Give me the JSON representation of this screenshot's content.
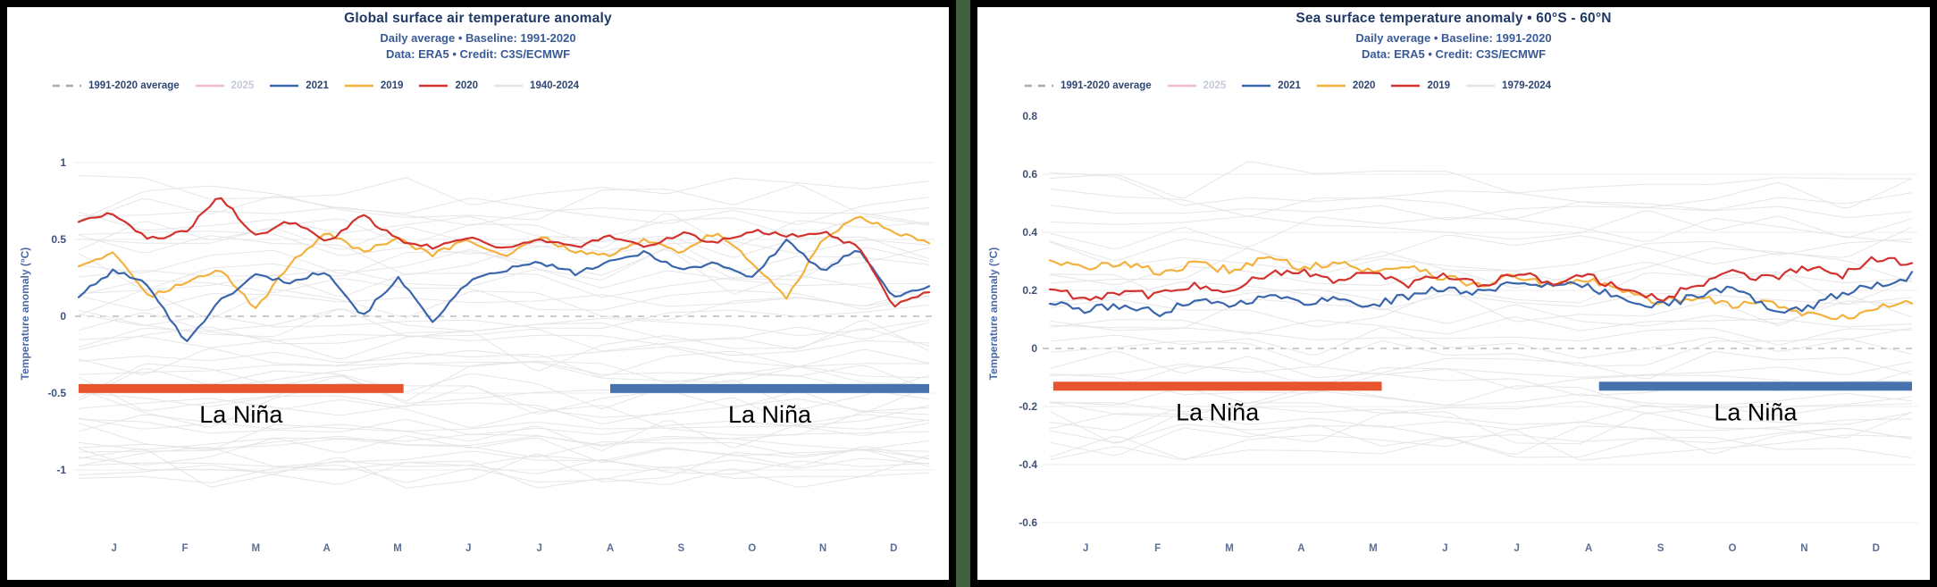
{
  "page": {
    "background_color": "#40603f",
    "panel_border_color": "#000000",
    "panel_background": "#ffffff"
  },
  "chart_data": [
    {
      "type": "line",
      "title": "Global surface air temperature anomaly",
      "subtitle": "Daily average • Baseline: 1991-2020",
      "credit": "Data: ERA5 • Credit: C3S/ECMWF",
      "ylabel": "Temperature anomaly (°C)",
      "x_tick_labels": [
        "J",
        "F",
        "M",
        "A",
        "M",
        "J",
        "J",
        "A",
        "S",
        "O",
        "N",
        "D"
      ],
      "yticks": [
        1,
        0.5,
        0,
        -0.5,
        -1
      ],
      "ylim": [
        -1.43,
        1.3
      ],
      "grid": "horizontal",
      "legend_position": "top-left",
      "x_domain": "calendar_year_fraction",
      "legend": [
        {
          "label": "1991-2020 average",
          "style": "dashed",
          "color": "#a9a9ad",
          "text_color": "#2e4672",
          "disabled": false
        },
        {
          "label": "2025",
          "style": "solid",
          "color": "#e69ba8",
          "text_color": "#c4cad5",
          "disabled": true
        },
        {
          "label": "2021",
          "style": "solid",
          "color": "#3a66ac",
          "text_color": "#2e4672",
          "disabled": false
        },
        {
          "label": "2019",
          "style": "solid",
          "color": "#f3b13e",
          "text_color": "#2e4672",
          "disabled": false
        },
        {
          "label": "2020",
          "style": "solid",
          "color": "#d2322e",
          "text_color": "#2e4672",
          "disabled": false
        },
        {
          "label": "1940-2024",
          "style": "solid",
          "color": "#e4e4e8",
          "text_color": "#2e4672",
          "disabled": false
        }
      ],
      "baseline": {
        "label": "1991-2020 average",
        "value": 0,
        "style": "dashed",
        "color": "#bcbcc1"
      },
      "series": [
        {
          "name": "2019",
          "color": "#f3b13e",
          "values": [
            0.33,
            0.42,
            0.13,
            0.22,
            0.3,
            0.05,
            0.35,
            0.55,
            0.42,
            0.5,
            0.4,
            0.5,
            0.38,
            0.52,
            0.42,
            0.4,
            0.5,
            0.42,
            0.55,
            0.35,
            0.12,
            0.5,
            0.65,
            0.55,
            0.47
          ]
        },
        {
          "name": "2021",
          "color": "#3a66ac",
          "values": [
            0.13,
            0.3,
            0.2,
            -0.17,
            0.1,
            0.27,
            0.22,
            0.3,
            0.0,
            0.25,
            -0.03,
            0.22,
            0.3,
            0.35,
            0.28,
            0.35,
            0.42,
            0.3,
            0.35,
            0.25,
            0.5,
            0.28,
            0.45,
            0.12,
            0.2
          ]
        },
        {
          "name": "2020",
          "color": "#d2322e",
          "values": [
            0.62,
            0.67,
            0.5,
            0.55,
            0.78,
            0.52,
            0.62,
            0.48,
            0.66,
            0.5,
            0.45,
            0.52,
            0.44,
            0.5,
            0.45,
            0.52,
            0.44,
            0.54,
            0.48,
            0.56,
            0.52,
            0.55,
            0.45,
            0.07,
            0.17
          ]
        }
      ],
      "background_series": {
        "name": "1940-2024",
        "color": "#e3e3e7",
        "count": 46,
        "offset_min": -1.02,
        "offset_max": 0.8,
        "seed": 11
      },
      "annotations": [
        {
          "label": "La Niña",
          "bar_color": "#e8542e",
          "x_start": 0.0,
          "x_end": 0.382,
          "y": -0.47
        },
        {
          "label": "La Niña",
          "bar_color": "#4872ae",
          "x_start": 0.625,
          "x_end": 1.0,
          "y": -0.47
        }
      ]
    },
    {
      "type": "line",
      "title": "Sea surface temperature anomaly • 60°S - 60°N",
      "subtitle": "Daily average • Baseline: 1991-2020",
      "credit": "Data: ERA5 • Credit: C3S/ECMWF",
      "ylabel": "Temperature anomaly (°C)",
      "x_tick_labels": [
        "J",
        "F",
        "M",
        "A",
        "M",
        "J",
        "J",
        "A",
        "S",
        "O",
        "N",
        "D"
      ],
      "yticks": [
        0.8,
        0.6,
        0.4,
        0.2,
        0,
        -0.2,
        -0.4,
        -0.6
      ],
      "ylim": [
        -0.65,
        0.88
      ],
      "grid": "horizontal",
      "legend_position": "top-left",
      "x_domain": "calendar_year_fraction",
      "legend": [
        {
          "label": "1991-2020 average",
          "style": "dashed",
          "color": "#a9a9ad",
          "text_color": "#2e4672",
          "disabled": false
        },
        {
          "label": "2025",
          "style": "solid",
          "color": "#e69ba8",
          "text_color": "#c4cad5",
          "disabled": true
        },
        {
          "label": "2021",
          "style": "solid",
          "color": "#3a66ac",
          "text_color": "#2e4672",
          "disabled": false
        },
        {
          "label": "2020",
          "style": "solid",
          "color": "#f3b13e",
          "text_color": "#2e4672",
          "disabled": false
        },
        {
          "label": "2019",
          "style": "solid",
          "color": "#d2322e",
          "text_color": "#2e4672",
          "disabled": false
        },
        {
          "label": "1979-2024",
          "style": "solid",
          "color": "#e4e4e8",
          "text_color": "#2e4672",
          "disabled": false
        }
      ],
      "baseline": {
        "label": "1991-2020 average",
        "value": 0,
        "style": "dashed",
        "color": "#bcbcc1"
      },
      "series": [
        {
          "name": "2020",
          "color": "#f3b13e",
          "values": [
            0.31,
            0.27,
            0.3,
            0.26,
            0.29,
            0.27,
            0.31,
            0.28,
            0.3,
            0.26,
            0.29,
            0.24,
            0.22,
            0.25,
            0.21,
            0.24,
            0.19,
            0.16,
            0.18,
            0.15,
            0.16,
            0.12,
            0.1,
            0.14,
            0.16
          ]
        },
        {
          "name": "2021",
          "color": "#3a66ac",
          "values": [
            0.16,
            0.13,
            0.15,
            0.12,
            0.17,
            0.15,
            0.18,
            0.16,
            0.17,
            0.15,
            0.18,
            0.21,
            0.19,
            0.23,
            0.22,
            0.21,
            0.17,
            0.15,
            0.18,
            0.21,
            0.14,
            0.13,
            0.19,
            0.22,
            0.25
          ]
        },
        {
          "name": "2019",
          "color": "#d2322e",
          "values": [
            0.21,
            0.17,
            0.2,
            0.18,
            0.22,
            0.2,
            0.25,
            0.27,
            0.23,
            0.26,
            0.22,
            0.25,
            0.22,
            0.26,
            0.23,
            0.25,
            0.2,
            0.17,
            0.22,
            0.26,
            0.24,
            0.28,
            0.25,
            0.31,
            0.29
          ]
        }
      ],
      "background_series": {
        "name": "1979-2024",
        "color": "#e3e3e7",
        "count": 32,
        "offset_min": -0.34,
        "offset_max": 0.58,
        "seed": 9
      },
      "annotations": [
        {
          "label": "La Niña",
          "bar_color": "#e8542e",
          "x_start": 0.004,
          "x_end": 0.385,
          "y": -0.13
        },
        {
          "label": "La Niña",
          "bar_color": "#4872ae",
          "x_start": 0.637,
          "x_end": 1.0,
          "y": -0.13
        }
      ]
    }
  ]
}
